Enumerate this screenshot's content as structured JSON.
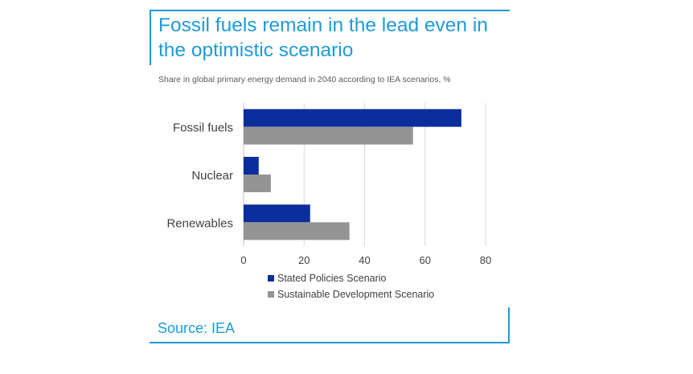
{
  "title": "Fossil fuels remain in the lead even in the optimistic scenario",
  "subtitle": "Share in global primary energy demand in 2040 according to IEA scenarios, %",
  "source": "Source: IEA",
  "colors": {
    "accent": "#1E9BD7",
    "series_1": "#0C2D9C",
    "series_2": "#949494",
    "grid": "#D9D9D9",
    "text": "#404040"
  },
  "chart_data": {
    "type": "bar",
    "orientation": "horizontal",
    "categories": [
      "Fossil fuels",
      "Nuclear",
      "Renewables"
    ],
    "series": [
      {
        "name": "Stated Policies Scenario",
        "values": [
          72,
          5,
          22
        ]
      },
      {
        "name": "Sustainable Development Scenario",
        "values": [
          56,
          9,
          35
        ]
      }
    ],
    "xlim": [
      0,
      80
    ],
    "xticks": [
      0,
      20,
      40,
      60,
      80
    ],
    "grid": true,
    "legend_position": "bottom"
  }
}
